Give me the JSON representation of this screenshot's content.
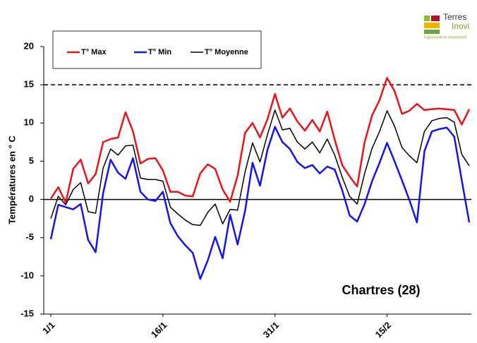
{
  "chart_data": {
    "type": "line",
    "y_label": "Températures en ° C",
    "annotation": "Chartres (28)",
    "categories": [
      "1/1",
      null,
      null,
      null,
      null,
      null,
      null,
      null,
      null,
      null,
      null,
      null,
      null,
      null,
      null,
      "16/1",
      null,
      null,
      null,
      null,
      null,
      null,
      null,
      null,
      null,
      null,
      null,
      null,
      null,
      null,
      "31/1",
      null,
      null,
      null,
      null,
      null,
      null,
      null,
      null,
      null,
      null,
      null,
      null,
      null,
      null,
      "15/2",
      null,
      null,
      null,
      null,
      null,
      null,
      null,
      null,
      null,
      null,
      null
    ],
    "series": [
      {
        "name": "T° Max",
        "color": "#e8141c",
        "values": [
          0.1,
          1.6,
          -0.4,
          4,
          5.2,
          2.1,
          3.3,
          7.5,
          7.9,
          8.1,
          11.4,
          8.9,
          4.7,
          5.3,
          5.4,
          3.8,
          1,
          1,
          0.5,
          0.4,
          3.4,
          4.6,
          4,
          1.3,
          -0.3,
          3.1,
          8.7,
          10,
          8.1,
          10.5,
          13.8,
          10.7,
          11.9,
          10.2,
          9,
          10.4,
          8.9,
          11.5,
          7.8,
          4.5,
          3,
          1.7,
          7.5,
          11,
          13,
          15.9,
          14.2,
          11.2,
          11.6,
          12.5,
          11.7,
          11.8,
          11.9,
          11.8,
          11.7,
          9.8,
          11.8
        ]
      },
      {
        "name": "T° Min",
        "color": "#1414e8",
        "values": [
          -5.2,
          -0.7,
          -1,
          -1.3,
          -0.6,
          -5.3,
          -6.9,
          0.8,
          5.2,
          3.5,
          2.7,
          5.4,
          1,
          0,
          -0.2,
          1,
          -3.1,
          -4.8,
          -6,
          -7,
          -10.4,
          -8,
          -4.9,
          -7.7,
          -2,
          -5.9,
          -1.5,
          4.8,
          1.8,
          6.5,
          9.5,
          7.5,
          6.6,
          4.9,
          4.1,
          4.5,
          3.4,
          4.3,
          3.9,
          1.2,
          -2.1,
          -2.9,
          -0.6,
          2.4,
          4.8,
          7.4,
          5,
          2.5,
          -0.1,
          -3,
          6.3,
          8.9,
          9.2,
          9.4,
          8.2,
          2.5,
          -3
        ]
      },
      {
        "name": "T° Moyenne",
        "color": "#000000",
        "values": [
          -2.5,
          0.4,
          -0.7,
          1.3,
          2.2,
          -1.6,
          -1.8,
          4.1,
          6.6,
          5.8,
          7,
          7.1,
          2.8,
          2.6,
          2.6,
          2.4,
          -1,
          -1.9,
          -2.7,
          -3.3,
          -3.4,
          -1.7,
          -0.6,
          -3.2,
          -1.3,
          -1.4,
          3.6,
          7.4,
          4.9,
          8.5,
          11.7,
          9.1,
          9.3,
          7.5,
          6.6,
          7.5,
          6.1,
          7.9,
          5.8,
          2.9,
          0.4,
          -0.6,
          3.4,
          6.7,
          8.9,
          11.6,
          9.6,
          6.8,
          5.7,
          4.8,
          8.9,
          10.3,
          10.6,
          10.7,
          10.1,
          5.9,
          4.4
        ]
      }
    ],
    "ylim": [
      -15,
      20
    ],
    "yticks": [
      -15,
      -10,
      -5,
      0,
      5,
      10,
      15,
      20
    ],
    "reference_line": 15
  },
  "logo": {
    "line1": "Terres",
    "line2": "Inovi",
    "tagline": "l'agronomie en mouvement"
  }
}
